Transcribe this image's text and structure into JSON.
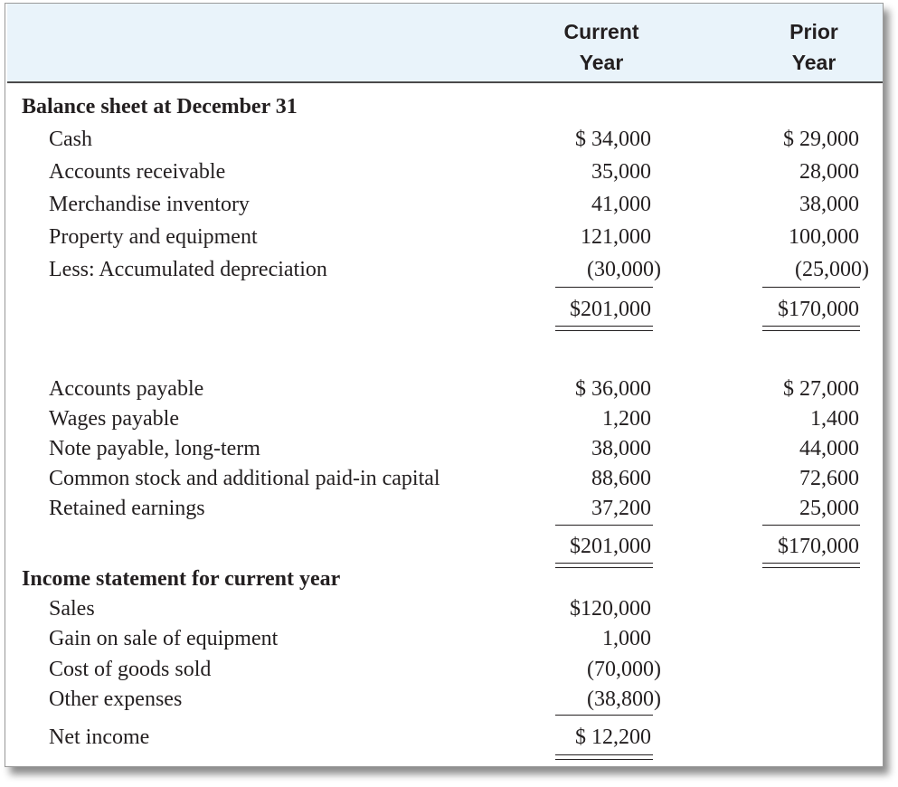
{
  "columns": {
    "current_line1": "Current",
    "current_line2": "Year",
    "prior_line1": "Prior",
    "prior_line2": "Year"
  },
  "balance_sheet": {
    "title": "Balance sheet at December 31",
    "assets": [
      {
        "label": "Cash",
        "current": "$ 34,000",
        "prior": "$ 29,000"
      },
      {
        "label": "Accounts receivable",
        "current": "35,000",
        "prior": "28,000"
      },
      {
        "label": "Merchandise inventory",
        "current": "41,000",
        "prior": "38,000"
      },
      {
        "label": "Property and equipment",
        "current": "121,000",
        "prior": "100,000"
      },
      {
        "label": "Less: Accumulated depreciation",
        "current": "(30,000)",
        "prior": "(25,000)"
      }
    ],
    "assets_total": {
      "current": "$201,000",
      "prior": "$170,000"
    },
    "liabilities": [
      {
        "label": "Accounts payable",
        "current": "$ 36,000",
        "prior": "$ 27,000"
      },
      {
        "label": "Wages payable",
        "current": "1,200",
        "prior": "1,400"
      },
      {
        "label": "Note payable, long-term",
        "current": "38,000",
        "prior": "44,000"
      },
      {
        "label": "Common stock and additional paid-in capital",
        "current": "88,600",
        "prior": "72,600"
      },
      {
        "label": "Retained earnings",
        "current": "37,200",
        "prior": "25,000"
      }
    ],
    "liabilities_total": {
      "current": "$201,000",
      "prior": "$170,000"
    }
  },
  "income_statement": {
    "title": "Income statement for current year",
    "rows": [
      {
        "label": "Sales",
        "current": "$120,000"
      },
      {
        "label": "Gain on sale of equipment",
        "current": "1,000"
      },
      {
        "label": "Cost of goods sold",
        "current": "(70,000)"
      },
      {
        "label": "Other expenses",
        "current": "(38,800)"
      }
    ],
    "net_income": {
      "label": "Net income",
      "current": "$ 12,200"
    }
  }
}
